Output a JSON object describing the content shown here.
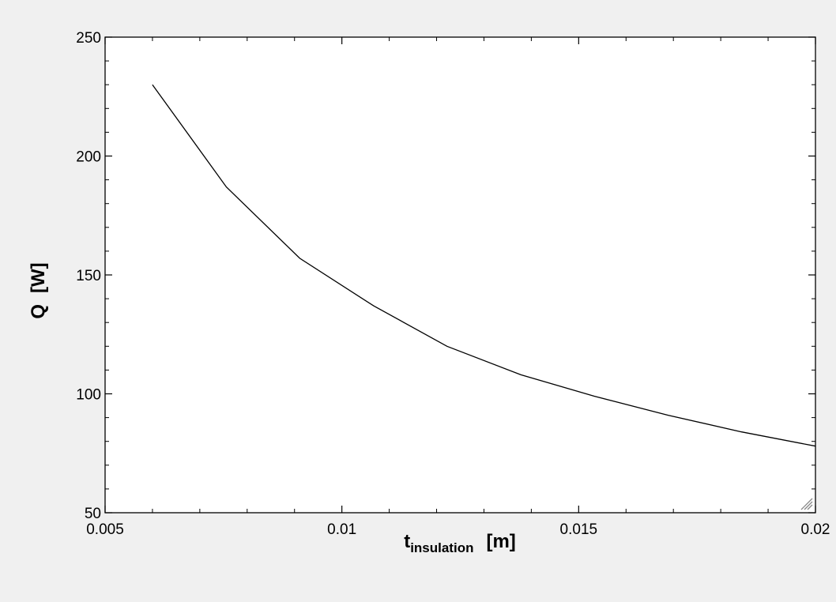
{
  "chart_data": {
    "type": "line",
    "title": "",
    "xlabel": {
      "main": "t",
      "subscript": "insulation",
      "unit": "[m]"
    },
    "ylabel": {
      "main": "Q",
      "unit": "[W]"
    },
    "xlim": [
      0.005,
      0.02
    ],
    "ylim": [
      50,
      250
    ],
    "x_ticks": [
      0.005,
      0.01,
      0.015,
      0.02
    ],
    "x_tick_labels": [
      "0.005",
      "0.01",
      "0.015",
      "0.02"
    ],
    "y_ticks": [
      50,
      100,
      150,
      200,
      250
    ],
    "y_tick_labels": [
      "50",
      "100",
      "150",
      "200",
      "250"
    ],
    "grid": false,
    "series": [
      {
        "x": [
          0.006,
          0.00756,
          0.00911,
          0.01067,
          0.01222,
          0.01378,
          0.01533,
          0.01689,
          0.01844,
          0.02
        ],
        "y": [
          230,
          187,
          157,
          137,
          120,
          108,
          99,
          91,
          84,
          78
        ],
        "color": "#000000"
      }
    ]
  }
}
